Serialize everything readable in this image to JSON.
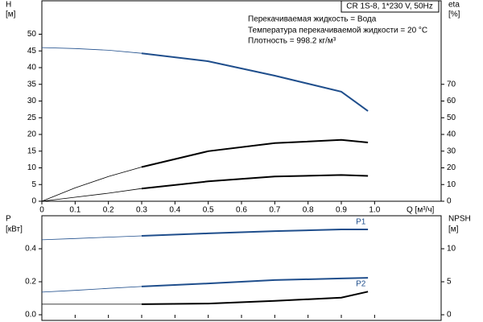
{
  "chart_data": [
    {
      "type": "line",
      "title": "CR 1S-8, 1*230 V, 50Hz",
      "annotations": [
        "Перекачиваемая жидкость = Вода",
        "Температура перекачиваемой жидкости = 20 °C",
        "Плотность = 998.2 кг/м³"
      ],
      "ylabel": "H",
      "yunit": "[м]",
      "y2label": "eta",
      "y2unit": "[%]",
      "xlabel": "Q [м³/ч]",
      "x": [
        0,
        0.1,
        0.2,
        0.3,
        0.5,
        0.7,
        0.9,
        0.98
      ],
      "series": [
        {
          "color": "#1f4e8c",
          "values": [
            46,
            45.7,
            45.2,
            44.3,
            41.9,
            37.6,
            32.8,
            27
          ]
        },
        {
          "color": "#000000",
          "axis": "y2",
          "values": [
            0,
            8,
            14.8,
            20.5,
            30,
            34.8,
            36.7,
            35.2
          ]
        },
        {
          "color": "#000000",
          "axis": "y2",
          "values": [
            0,
            2.4,
            4.8,
            7.6,
            11.9,
            14.8,
            15.7,
            15.2
          ]
        }
      ],
      "xlim": [
        0,
        1.2
      ],
      "xticks": [
        0,
        0.1,
        0.2,
        0.3,
        0.4,
        0.5,
        0.6,
        0.7,
        0.8,
        0.9,
        {
          "value": 1,
          "label": "1.0"
        }
      ],
      "ylim": [
        0,
        60
      ],
      "yticks": [
        0,
        5,
        10,
        15,
        20,
        25,
        30,
        35,
        40,
        45,
        50
      ],
      "y2lim": [
        0,
        120
      ],
      "y2ticks": [
        0,
        10,
        20,
        30,
        40,
        50,
        60,
        70
      ]
    },
    {
      "type": "line",
      "ylabel": "P",
      "yunit": "[кВт]",
      "y2label": "NPSH",
      "y2unit": "[м]",
      "x": [
        0,
        0.1,
        0.2,
        0.3,
        0.5,
        0.7,
        0.9,
        0.98
      ],
      "series": [
        {
          "name": "P1",
          "color": "#1f4e8c",
          "values": [
            0.454,
            0.462,
            0.47,
            0.478,
            0.493,
            0.507,
            0.517,
            0.517
          ]
        },
        {
          "name": "P2",
          "color": "#1f4e8c",
          "values": [
            0.137,
            0.148,
            0.16,
            0.171,
            0.19,
            0.21,
            0.22,
            0.224
          ]
        },
        {
          "color": "#000000",
          "axis": "y2",
          "values": [
            1.6,
            1.6,
            1.6,
            1.6,
            1.7,
            2.1,
            2.6,
            3.5
          ]
        }
      ],
      "xlim": [
        0,
        1.2
      ],
      "xticks": [
        0,
        0.1,
        0.2,
        0.3,
        0.4,
        0.5,
        0.6,
        0.7,
        0.8,
        0.9,
        1
      ],
      "ylim": [
        0,
        0.6
      ],
      "yticks": [
        {
          "value": 0,
          "label": "0.0"
        },
        0.2,
        0.4
      ],
      "y2lim": [
        0,
        15
      ],
      "y2ticks": [
        0,
        5,
        10
      ]
    }
  ]
}
